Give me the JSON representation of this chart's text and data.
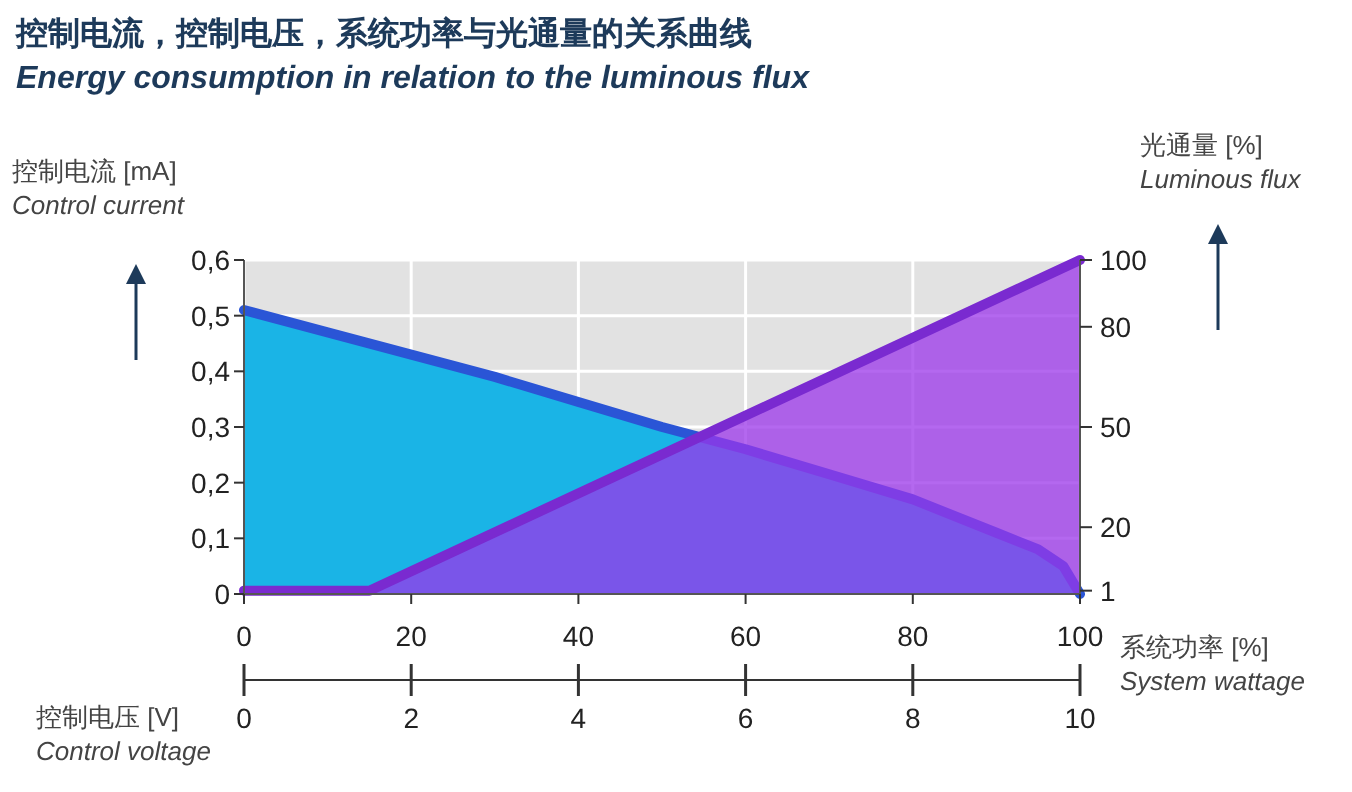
{
  "chart_data": {
    "type": "area",
    "title": "控制电流，控制电压，系统功率与光通量的关系曲线",
    "subtitle": "Energy consumption in relation to the luminous flux",
    "xlabel": "系统功率 [%]\nSystem wattage",
    "ylabel": "控制电流 [mA]\nControl current",
    "y2label": "光通量 [%]\nLuminous flux",
    "x2label": "控制电压 [V]\nControl voltage",
    "xlim": [
      0,
      100
    ],
    "xticks": [
      0,
      20,
      40,
      60,
      80,
      100
    ],
    "ylim": [
      0,
      0.6
    ],
    "yticks": [
      {
        "value": 0,
        "label": "0"
      },
      {
        "value": 0.1,
        "label": "0,1"
      },
      {
        "value": 0.2,
        "label": "0,2"
      },
      {
        "value": 0.3,
        "label": "0,3"
      },
      {
        "value": 0.4,
        "label": "0,4"
      },
      {
        "value": 0.5,
        "label": "0,5"
      },
      {
        "value": 0.6,
        "label": "0,6"
      }
    ],
    "y2lim": [
      0,
      100
    ],
    "y2ticks": [
      1,
      20,
      50,
      80,
      100
    ],
    "x2lim": [
      0,
      10
    ],
    "x2ticks": [
      0,
      2,
      4,
      6,
      8,
      10
    ],
    "grid": true,
    "series": [
      {
        "color": "#1ab4e6",
        "axis": "y",
        "x": [
          0,
          10,
          20,
          30,
          40,
          50,
          60,
          70,
          80,
          90,
          95,
          98,
          100
        ],
        "values": [
          0.51,
          0.47,
          0.43,
          0.39,
          0.345,
          0.3,
          0.26,
          0.215,
          0.17,
          0.11,
          0.08,
          0.05,
          0
        ]
      },
      {
        "color": "#9b35ea",
        "axis": "y2",
        "x": [
          0,
          15,
          100
        ],
        "values": [
          1,
          1,
          100
        ]
      }
    ]
  }
}
